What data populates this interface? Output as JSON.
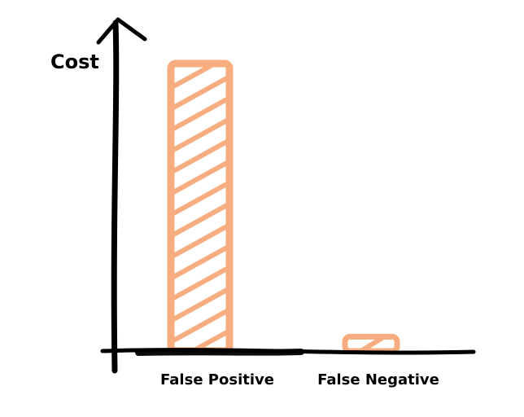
{
  "chart_data": {
    "type": "bar",
    "title": "",
    "xlabel": "",
    "ylabel": "Cost",
    "categories": [
      "False Positive",
      "False Negative"
    ],
    "values": [
      100,
      5
    ],
    "ylim": [
      0,
      100
    ],
    "grid": false,
    "legend": "none",
    "style": "hand-drawn",
    "colors": {
      "bar": "#f7ad7f",
      "axis": "#000000",
      "text": "#000000"
    }
  }
}
